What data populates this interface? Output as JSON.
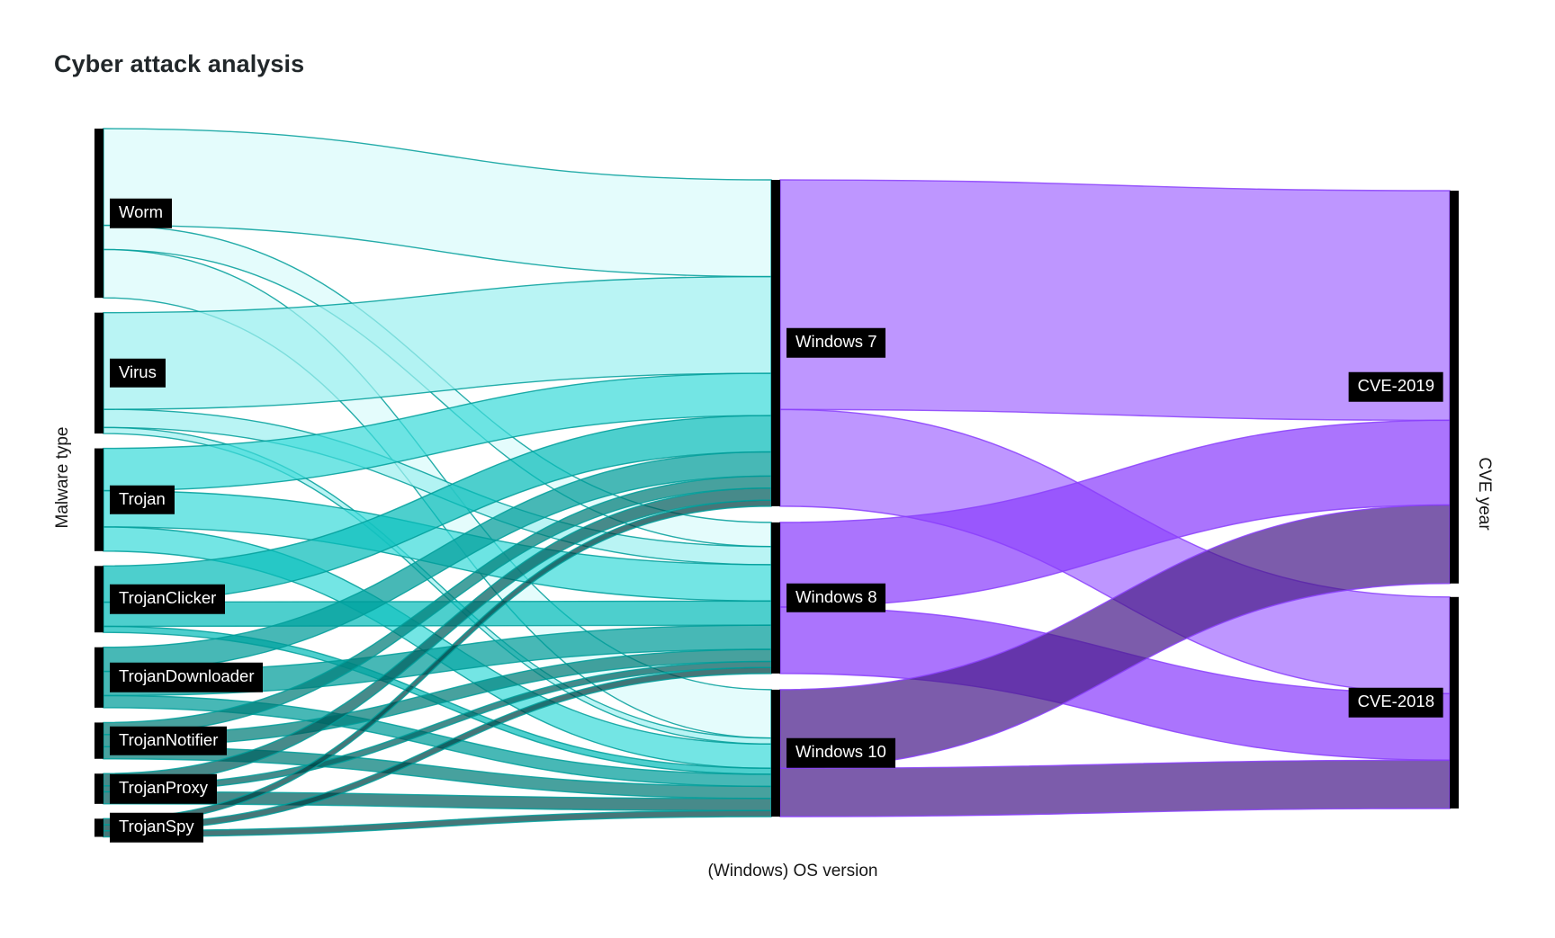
{
  "title": "Cyber attack analysis",
  "axes": {
    "left": "Malware type",
    "bottom": "(Windows) OS version",
    "right": "CVE year"
  },
  "colors": {
    "background": "#ffffff",
    "title_text": "#21272a",
    "axis_text": "#161616",
    "node_bar": "#000000",
    "node_label_bg": "#000000",
    "node_label_text": "#ffffff",
    "teal_link_stroke": "#009d9a",
    "purple_link_stroke": "#8a3ffc"
  },
  "chart_data": {
    "type": "sankey",
    "title": "Cyber attack analysis",
    "column_labels": [
      "Malware type",
      "(Windows) OS version",
      "CVE year"
    ],
    "legend": "none",
    "grid": "off",
    "nodes": [
      {
        "name": "Worm",
        "column": 0,
        "color": "#d9fbfb"
      },
      {
        "name": "Virus",
        "column": 0,
        "color": "#9ef0f0"
      },
      {
        "name": "Trojan",
        "column": 0,
        "color": "#3ddbd9"
      },
      {
        "name": "TrojanClicker",
        "column": 0,
        "color": "#08bdba"
      },
      {
        "name": "TrojanDownloader",
        "column": 0,
        "color": "#009d9a"
      },
      {
        "name": "TrojanNotifier",
        "column": 0,
        "color": "#007d79"
      },
      {
        "name": "TrojanProxy",
        "column": 0,
        "color": "#005d5d"
      },
      {
        "name": "TrojanSpy",
        "column": 0,
        "color": "#004144"
      },
      {
        "name": "Windows 7",
        "column": 1,
        "color": "#a56eff"
      },
      {
        "name": "Windows 8",
        "column": 1,
        "color": "#8a3ffc"
      },
      {
        "name": "Windows 10",
        "column": 1,
        "color": "#491d8b"
      },
      {
        "name": "CVE-2019",
        "column": 2,
        "color": "#be95ff"
      },
      {
        "name": "CVE-2018",
        "column": 2,
        "color": "#be95ff"
      }
    ],
    "links": [
      {
        "source": "Worm",
        "target": "Windows 7",
        "value": 16
      },
      {
        "source": "Worm",
        "target": "Windows 8",
        "value": 4
      },
      {
        "source": "Worm",
        "target": "Windows 10",
        "value": 8
      },
      {
        "source": "Virus",
        "target": "Windows 7",
        "value": 16
      },
      {
        "source": "Virus",
        "target": "Windows 8",
        "value": 3
      },
      {
        "source": "Virus",
        "target": "Windows 10",
        "value": 1
      },
      {
        "source": "Trojan",
        "target": "Windows 7",
        "value": 7
      },
      {
        "source": "Trojan",
        "target": "Windows 8",
        "value": 6
      },
      {
        "source": "Trojan",
        "target": "Windows 10",
        "value": 4
      },
      {
        "source": "TrojanClicker",
        "target": "Windows 7",
        "value": 6
      },
      {
        "source": "TrojanClicker",
        "target": "Windows 8",
        "value": 4
      },
      {
        "source": "TrojanClicker",
        "target": "Windows 10",
        "value": 1
      },
      {
        "source": "TrojanDownloader",
        "target": "Windows 7",
        "value": 4
      },
      {
        "source": "TrojanDownloader",
        "target": "Windows 8",
        "value": 4
      },
      {
        "source": "TrojanDownloader",
        "target": "Windows 10",
        "value": 2
      },
      {
        "source": "TrojanNotifier",
        "target": "Windows 7",
        "value": 2
      },
      {
        "source": "TrojanNotifier",
        "target": "Windows 8",
        "value": 2
      },
      {
        "source": "TrojanNotifier",
        "target": "Windows 10",
        "value": 2
      },
      {
        "source": "TrojanProxy",
        "target": "Windows 7",
        "value": 2
      },
      {
        "source": "TrojanProxy",
        "target": "Windows 8",
        "value": 1
      },
      {
        "source": "TrojanProxy",
        "target": "Windows 10",
        "value": 2
      },
      {
        "source": "TrojanSpy",
        "target": "Windows 7",
        "value": 1
      },
      {
        "source": "TrojanSpy",
        "target": "Windows 8",
        "value": 1
      },
      {
        "source": "TrojanSpy",
        "target": "Windows 10",
        "value": 1
      },
      {
        "source": "Windows 7",
        "target": "CVE-2019",
        "value": 38
      },
      {
        "source": "Windows 7",
        "target": "CVE-2018",
        "value": 16
      },
      {
        "source": "Windows 8",
        "target": "CVE-2019",
        "value": 14
      },
      {
        "source": "Windows 8",
        "target": "CVE-2018",
        "value": 11
      },
      {
        "source": "Windows 10",
        "target": "CVE-2019",
        "value": 13
      },
      {
        "source": "Windows 10",
        "target": "CVE-2018",
        "value": 8
      }
    ]
  }
}
